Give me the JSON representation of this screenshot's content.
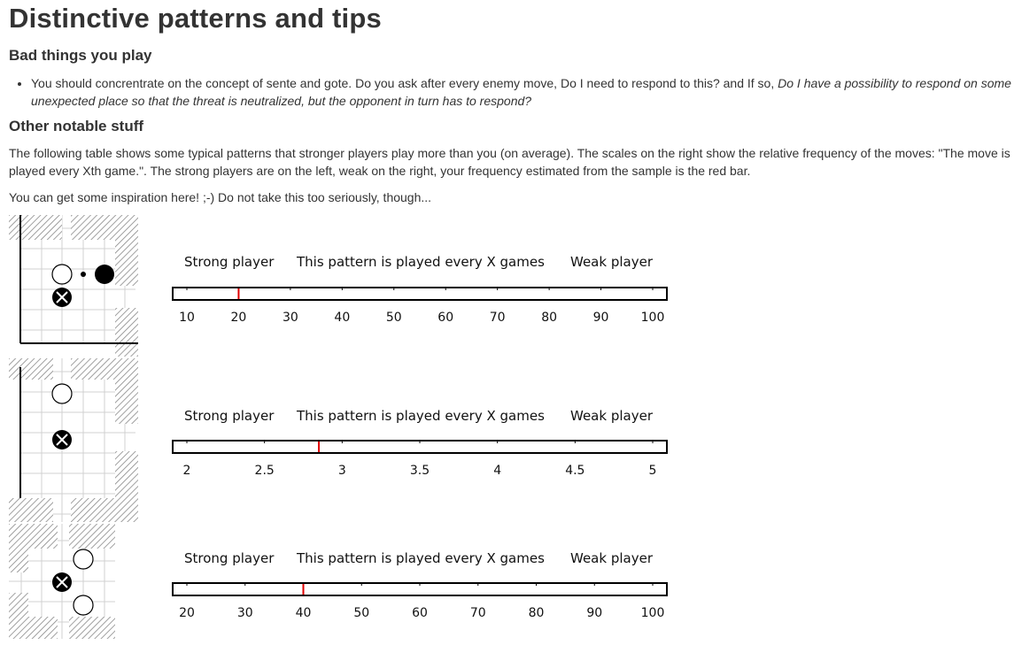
{
  "page": {
    "title": "Distinctive patterns and tips",
    "bad_heading": "Bad things you play",
    "bad_items": [
      {
        "text": "You should concrentrate on the concept of sente and gote. Do you ask after every enemy move, Do I need to respond to this? and If so, ",
        "emphasis": "Do I have a possibility to respond on some unexpected place so that the threat is neutralized, but the opponent in turn has to respond?"
      }
    ],
    "other_heading": "Other notable stuff",
    "description": "The following table shows some typical patterns that stronger players play more than you (on average). The scales on the right show the relative frequency of the moves: \"The move is played every Xth game.\". The strong players are on the left, weak on the right, your frequency estimated from the sample is the red bar.",
    "inspiration": "You can get some inspiration here! ;-) Do not take this too seriously, though..."
  },
  "scale_labels": {
    "strong": "Strong player",
    "middle": "This pattern is played every X games",
    "weak": "Weak player"
  },
  "colors": {
    "marker": "#e00000",
    "text": "#333333"
  },
  "patterns": [
    {
      "ticks": [
        "10",
        "20",
        "30",
        "40",
        "50",
        "60",
        "70",
        "80",
        "90",
        "100"
      ],
      "tick_values": [
        10,
        20,
        30,
        40,
        50,
        60,
        70,
        80,
        90,
        100
      ],
      "range": [
        10,
        100
      ],
      "your_frequency": 20
    },
    {
      "ticks": [
        "2",
        "2.5",
        "3",
        "3.5",
        "4",
        "4.5",
        "5"
      ],
      "tick_values": [
        2,
        2.5,
        3,
        3.5,
        4,
        4.5,
        5
      ],
      "range": [
        2,
        5
      ],
      "your_frequency": 2.85
    },
    {
      "ticks": [
        "20",
        "30",
        "40",
        "50",
        "60",
        "70",
        "80",
        "90",
        "100"
      ],
      "tick_values": [
        20,
        30,
        40,
        50,
        60,
        70,
        80,
        90,
        100
      ],
      "range": [
        20,
        100
      ],
      "your_frequency": 40
    }
  ]
}
